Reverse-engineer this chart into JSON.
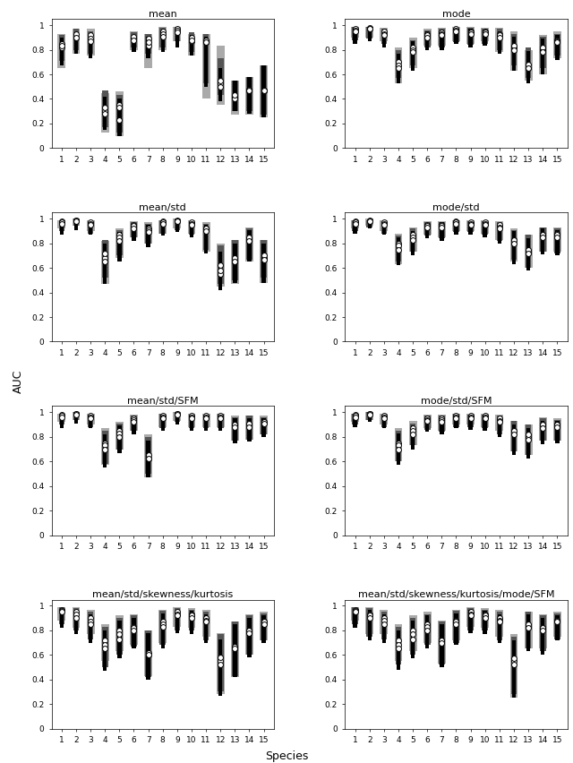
{
  "titles": [
    "mean",
    "mode",
    "mean/std",
    "mode/std",
    "mean/std/SFM",
    "mode/std/SFM",
    "mean/std/skewness/kurtosis",
    "mean/std/skewness/kurtosis/mode/SFM"
  ],
  "n_species": 15,
  "ylabel": "AUC",
  "xlabel": "Species",
  "colors": [
    "#aaaaaa",
    "#555555",
    "#000000"
  ],
  "bar_width": 0.55,
  "ylim": [
    0,
    1.05
  ],
  "yticks": [
    0,
    0.2,
    0.4,
    0.6,
    0.8,
    1
  ],
  "subplots_data": [
    {
      "title": "mean",
      "tops": [
        0.93,
        0.97,
        0.97,
        0.45,
        0.46,
        0.95,
        0.93,
        0.99,
        0.99,
        0.93,
        0.93,
        0.83,
        0.55,
        0.58,
        0.67
      ],
      "bots": [
        0.65,
        0.77,
        0.75,
        0.13,
        0.1,
        0.8,
        0.65,
        0.8,
        0.87,
        0.75,
        0.4,
        0.35,
        0.27,
        0.27,
        0.25
      ],
      "meds": [
        0.82,
        0.9,
        0.92,
        0.3,
        0.35,
        0.9,
        0.83,
        0.95,
        0.97,
        0.87,
        0.86,
        0.53,
        0.42,
        0.47,
        0.47
      ],
      "tops2": [
        0.92,
        0.97,
        0.95,
        0.47,
        0.43,
        0.94,
        0.93,
        0.98,
        0.99,
        0.94,
        0.93,
        0.73,
        0.55,
        0.58,
        0.67
      ],
      "bots2": [
        0.71,
        0.8,
        0.77,
        0.17,
        0.13,
        0.82,
        0.77,
        0.82,
        0.87,
        0.78,
        0.53,
        0.43,
        0.3,
        0.3,
        0.27
      ],
      "meds2": [
        0.85,
        0.93,
        0.89,
        0.33,
        0.33,
        0.91,
        0.89,
        0.93,
        0.96,
        0.9,
        0.88,
        0.55,
        0.4,
        0.48,
        0.47
      ],
      "tops3": [
        0.9,
        0.94,
        0.92,
        0.42,
        0.4,
        0.92,
        0.91,
        0.96,
        0.97,
        0.92,
        0.91,
        0.65,
        0.55,
        0.58,
        0.67
      ],
      "bots3": [
        0.67,
        0.77,
        0.73,
        0.15,
        0.1,
        0.78,
        0.73,
        0.78,
        0.82,
        0.75,
        0.5,
        0.38,
        0.3,
        0.28,
        0.25
      ],
      "meds3": [
        0.83,
        0.9,
        0.87,
        0.28,
        0.23,
        0.88,
        0.86,
        0.91,
        0.94,
        0.88,
        0.86,
        0.5,
        0.43,
        0.47,
        0.47
      ]
    },
    {
      "title": "mode",
      "tops": [
        0.99,
        0.99,
        0.98,
        0.82,
        0.9,
        0.97,
        0.98,
        0.99,
        0.99,
        0.98,
        0.98,
        0.95,
        0.8,
        0.92,
        0.95
      ],
      "bots": [
        0.9,
        0.9,
        0.87,
        0.53,
        0.65,
        0.83,
        0.83,
        0.87,
        0.85,
        0.87,
        0.78,
        0.63,
        0.55,
        0.6,
        0.73
      ],
      "meds": [
        0.97,
        0.98,
        0.95,
        0.7,
        0.82,
        0.93,
        0.94,
        0.97,
        0.95,
        0.95,
        0.93,
        0.82,
        0.65,
        0.8,
        0.88
      ],
      "tops2": [
        0.99,
        0.99,
        0.97,
        0.8,
        0.88,
        0.96,
        0.97,
        0.98,
        0.98,
        0.97,
        0.97,
        0.93,
        0.82,
        0.91,
        0.93
      ],
      "bots2": [
        0.88,
        0.89,
        0.85,
        0.57,
        0.67,
        0.82,
        0.82,
        0.86,
        0.84,
        0.85,
        0.8,
        0.67,
        0.57,
        0.65,
        0.75
      ],
      "meds2": [
        0.96,
        0.97,
        0.93,
        0.67,
        0.8,
        0.92,
        0.93,
        0.96,
        0.94,
        0.94,
        0.92,
        0.83,
        0.68,
        0.82,
        0.87
      ],
      "tops3": [
        0.98,
        0.98,
        0.96,
        0.77,
        0.87,
        0.95,
        0.96,
        0.97,
        0.97,
        0.96,
        0.95,
        0.91,
        0.79,
        0.89,
        0.92
      ],
      "bots3": [
        0.85,
        0.87,
        0.82,
        0.53,
        0.63,
        0.8,
        0.8,
        0.85,
        0.82,
        0.83,
        0.77,
        0.63,
        0.53,
        0.6,
        0.72
      ],
      "meds3": [
        0.95,
        0.97,
        0.92,
        0.65,
        0.78,
        0.9,
        0.92,
        0.95,
        0.93,
        0.93,
        0.9,
        0.8,
        0.65,
        0.78,
        0.86
      ]
    },
    {
      "title": "mean/std",
      "tops": [
        0.99,
        1.0,
        0.99,
        0.82,
        0.92,
        0.98,
        0.97,
        0.99,
        1.0,
        0.99,
        0.97,
        0.8,
        0.83,
        0.93,
        0.83
      ],
      "bots": [
        0.92,
        0.94,
        0.9,
        0.47,
        0.68,
        0.85,
        0.8,
        0.88,
        0.92,
        0.88,
        0.73,
        0.45,
        0.47,
        0.65,
        0.48
      ],
      "meds": [
        0.98,
        0.99,
        0.97,
        0.68,
        0.87,
        0.95,
        0.92,
        0.98,
        0.99,
        0.97,
        0.92,
        0.55,
        0.65,
        0.83,
        0.68
      ],
      "tops2": [
        0.99,
        1.0,
        0.98,
        0.83,
        0.91,
        0.97,
        0.96,
        0.99,
        1.0,
        0.98,
        0.96,
        0.78,
        0.83,
        0.92,
        0.83
      ],
      "bots2": [
        0.9,
        0.94,
        0.88,
        0.52,
        0.7,
        0.85,
        0.8,
        0.88,
        0.91,
        0.87,
        0.75,
        0.47,
        0.5,
        0.67,
        0.52
      ],
      "meds2": [
        0.97,
        0.99,
        0.96,
        0.72,
        0.85,
        0.94,
        0.91,
        0.97,
        0.98,
        0.96,
        0.92,
        0.62,
        0.68,
        0.85,
        0.7
      ],
      "tops3": [
        0.98,
        0.99,
        0.97,
        0.8,
        0.89,
        0.96,
        0.95,
        0.98,
        0.99,
        0.97,
        0.95,
        0.73,
        0.8,
        0.91,
        0.8
      ],
      "bots3": [
        0.87,
        0.91,
        0.87,
        0.47,
        0.65,
        0.82,
        0.77,
        0.86,
        0.89,
        0.85,
        0.72,
        0.42,
        0.48,
        0.65,
        0.48
      ],
      "meds3": [
        0.96,
        0.98,
        0.95,
        0.65,
        0.82,
        0.92,
        0.89,
        0.96,
        0.98,
        0.95,
        0.9,
        0.58,
        0.65,
        0.82,
        0.67
      ]
    },
    {
      "title": "mode/std",
      "tops": [
        0.99,
        1.0,
        0.99,
        0.88,
        0.93,
        0.98,
        0.98,
        0.99,
        0.99,
        0.99,
        0.98,
        0.92,
        0.87,
        0.93,
        0.93
      ],
      "bots": [
        0.92,
        0.94,
        0.9,
        0.63,
        0.73,
        0.87,
        0.85,
        0.9,
        0.9,
        0.88,
        0.83,
        0.65,
        0.6,
        0.73,
        0.73
      ],
      "meds": [
        0.98,
        0.99,
        0.97,
        0.8,
        0.87,
        0.95,
        0.95,
        0.98,
        0.97,
        0.97,
        0.95,
        0.83,
        0.73,
        0.87,
        0.88
      ],
      "tops2": [
        0.99,
        0.99,
        0.98,
        0.86,
        0.92,
        0.97,
        0.97,
        0.99,
        0.98,
        0.98,
        0.97,
        0.91,
        0.87,
        0.93,
        0.92
      ],
      "bots2": [
        0.9,
        0.93,
        0.88,
        0.65,
        0.73,
        0.86,
        0.84,
        0.89,
        0.89,
        0.87,
        0.82,
        0.67,
        0.6,
        0.73,
        0.72
      ],
      "meds2": [
        0.97,
        0.98,
        0.96,
        0.78,
        0.85,
        0.94,
        0.94,
        0.97,
        0.96,
        0.96,
        0.93,
        0.83,
        0.75,
        0.87,
        0.87
      ],
      "tops3": [
        0.98,
        0.99,
        0.97,
        0.85,
        0.9,
        0.96,
        0.97,
        0.98,
        0.97,
        0.97,
        0.96,
        0.9,
        0.84,
        0.92,
        0.91
      ],
      "bots3": [
        0.88,
        0.92,
        0.87,
        0.62,
        0.7,
        0.84,
        0.82,
        0.87,
        0.87,
        0.85,
        0.8,
        0.63,
        0.58,
        0.71,
        0.7
      ],
      "meds3": [
        0.96,
        0.98,
        0.95,
        0.75,
        0.83,
        0.93,
        0.93,
        0.96,
        0.95,
        0.95,
        0.92,
        0.8,
        0.72,
        0.85,
        0.85
      ]
    },
    {
      "title": "mean/std/SFM",
      "tops": [
        0.99,
        1.0,
        0.99,
        0.87,
        0.92,
        0.98,
        0.82,
        0.99,
        1.0,
        0.99,
        0.99,
        0.99,
        0.97,
        0.97,
        0.97
      ],
      "bots": [
        0.92,
        0.94,
        0.9,
        0.57,
        0.7,
        0.85,
        0.47,
        0.88,
        0.93,
        0.88,
        0.88,
        0.88,
        0.77,
        0.78,
        0.82
      ],
      "meds": [
        0.98,
        0.99,
        0.97,
        0.75,
        0.85,
        0.95,
        0.62,
        0.97,
        0.99,
        0.97,
        0.97,
        0.97,
        0.9,
        0.9,
        0.92
      ],
      "tops2": [
        0.99,
        1.0,
        0.98,
        0.85,
        0.91,
        0.97,
        0.8,
        0.99,
        1.0,
        0.98,
        0.98,
        0.99,
        0.96,
        0.97,
        0.96
      ],
      "bots2": [
        0.9,
        0.94,
        0.88,
        0.58,
        0.7,
        0.85,
        0.5,
        0.87,
        0.92,
        0.87,
        0.87,
        0.87,
        0.77,
        0.78,
        0.82
      ],
      "meds2": [
        0.97,
        0.99,
        0.96,
        0.73,
        0.83,
        0.94,
        0.65,
        0.96,
        0.99,
        0.96,
        0.96,
        0.96,
        0.9,
        0.91,
        0.92
      ],
      "tops3": [
        0.98,
        0.99,
        0.97,
        0.82,
        0.89,
        0.96,
        0.77,
        0.97,
        0.99,
        0.97,
        0.97,
        0.98,
        0.95,
        0.95,
        0.95
      ],
      "bots3": [
        0.87,
        0.91,
        0.87,
        0.55,
        0.67,
        0.82,
        0.47,
        0.85,
        0.9,
        0.85,
        0.85,
        0.85,
        0.75,
        0.76,
        0.8
      ],
      "meds3": [
        0.96,
        0.98,
        0.95,
        0.7,
        0.8,
        0.92,
        0.62,
        0.95,
        0.98,
        0.95,
        0.95,
        0.95,
        0.88,
        0.88,
        0.91
      ]
    },
    {
      "title": "mode/std/SFM",
      "tops": [
        0.99,
        1.0,
        0.99,
        0.87,
        0.93,
        0.98,
        0.98,
        0.99,
        0.99,
        0.99,
        0.98,
        0.93,
        0.9,
        0.96,
        0.95
      ],
      "bots": [
        0.92,
        0.94,
        0.9,
        0.6,
        0.73,
        0.87,
        0.85,
        0.9,
        0.9,
        0.88,
        0.85,
        0.68,
        0.65,
        0.77,
        0.77
      ],
      "meds": [
        0.98,
        0.99,
        0.97,
        0.75,
        0.87,
        0.95,
        0.95,
        0.97,
        0.97,
        0.97,
        0.95,
        0.85,
        0.8,
        0.9,
        0.9
      ],
      "tops2": [
        0.99,
        1.0,
        0.98,
        0.85,
        0.91,
        0.97,
        0.97,
        0.99,
        0.98,
        0.98,
        0.97,
        0.93,
        0.9,
        0.95,
        0.94
      ],
      "bots2": [
        0.9,
        0.94,
        0.88,
        0.6,
        0.73,
        0.86,
        0.84,
        0.88,
        0.88,
        0.87,
        0.82,
        0.68,
        0.65,
        0.77,
        0.77
      ],
      "meds2": [
        0.97,
        0.99,
        0.96,
        0.73,
        0.85,
        0.94,
        0.94,
        0.96,
        0.96,
        0.96,
        0.93,
        0.85,
        0.82,
        0.9,
        0.9
      ],
      "tops3": [
        0.98,
        0.99,
        0.97,
        0.83,
        0.89,
        0.96,
        0.96,
        0.97,
        0.97,
        0.97,
        0.96,
        0.9,
        0.87,
        0.93,
        0.93
      ],
      "bots3": [
        0.88,
        0.92,
        0.87,
        0.57,
        0.7,
        0.84,
        0.82,
        0.87,
        0.86,
        0.85,
        0.8,
        0.65,
        0.62,
        0.74,
        0.75
      ],
      "meds3": [
        0.96,
        0.98,
        0.95,
        0.7,
        0.82,
        0.93,
        0.92,
        0.95,
        0.95,
        0.95,
        0.92,
        0.82,
        0.78,
        0.87,
        0.88
      ]
    },
    {
      "title": "mean/std/skewness/kurtosis",
      "tops": [
        0.99,
        0.99,
        0.97,
        0.85,
        0.92,
        0.93,
        0.8,
        0.97,
        0.99,
        0.98,
        0.97,
        0.78,
        0.87,
        0.93,
        0.95
      ],
      "bots": [
        0.88,
        0.82,
        0.77,
        0.55,
        0.63,
        0.68,
        0.43,
        0.7,
        0.83,
        0.82,
        0.75,
        0.28,
        0.42,
        0.6,
        0.72
      ],
      "meds": [
        0.97,
        0.95,
        0.9,
        0.72,
        0.8,
        0.83,
        0.6,
        0.87,
        0.95,
        0.93,
        0.9,
        0.55,
        0.65,
        0.8,
        0.87
      ],
      "tops2": [
        0.99,
        0.98,
        0.95,
        0.83,
        0.9,
        0.92,
        0.8,
        0.96,
        0.98,
        0.97,
        0.95,
        0.77,
        0.87,
        0.92,
        0.94
      ],
      "bots2": [
        0.85,
        0.8,
        0.73,
        0.5,
        0.6,
        0.67,
        0.42,
        0.68,
        0.8,
        0.8,
        0.72,
        0.3,
        0.43,
        0.6,
        0.72
      ],
      "meds2": [
        0.96,
        0.93,
        0.87,
        0.68,
        0.77,
        0.82,
        0.62,
        0.85,
        0.93,
        0.92,
        0.88,
        0.58,
        0.67,
        0.8,
        0.87
      ],
      "tops3": [
        0.97,
        0.97,
        0.93,
        0.8,
        0.88,
        0.9,
        0.78,
        0.94,
        0.97,
        0.96,
        0.93,
        0.73,
        0.85,
        0.9,
        0.92
      ],
      "bots3": [
        0.82,
        0.77,
        0.7,
        0.47,
        0.57,
        0.65,
        0.4,
        0.65,
        0.78,
        0.77,
        0.7,
        0.27,
        0.42,
        0.58,
        0.7
      ],
      "meds3": [
        0.95,
        0.9,
        0.85,
        0.65,
        0.73,
        0.8,
        0.6,
        0.83,
        0.92,
        0.9,
        0.87,
        0.52,
        0.65,
        0.78,
        0.85
      ]
    },
    {
      "title": "mean/std/skewness/kurtosis/mode/SFM",
      "tops": [
        0.99,
        0.99,
        0.97,
        0.85,
        0.92,
        0.95,
        0.88,
        0.97,
        0.99,
        0.98,
        0.97,
        0.77,
        0.95,
        0.93,
        0.95
      ],
      "bots": [
        0.88,
        0.77,
        0.77,
        0.55,
        0.63,
        0.7,
        0.53,
        0.72,
        0.83,
        0.82,
        0.75,
        0.25,
        0.65,
        0.65,
        0.75
      ],
      "meds": [
        0.97,
        0.93,
        0.9,
        0.72,
        0.8,
        0.85,
        0.72,
        0.88,
        0.95,
        0.93,
        0.9,
        0.55,
        0.83,
        0.82,
        0.88
      ],
      "tops2": [
        0.99,
        0.98,
        0.95,
        0.83,
        0.9,
        0.93,
        0.87,
        0.96,
        0.98,
        0.97,
        0.95,
        0.75,
        0.95,
        0.92,
        0.94
      ],
      "bots2": [
        0.85,
        0.75,
        0.73,
        0.52,
        0.6,
        0.68,
        0.52,
        0.7,
        0.8,
        0.8,
        0.72,
        0.28,
        0.65,
        0.63,
        0.73
      ],
      "meds2": [
        0.96,
        0.92,
        0.88,
        0.68,
        0.77,
        0.83,
        0.72,
        0.87,
        0.93,
        0.92,
        0.88,
        0.57,
        0.85,
        0.82,
        0.88
      ],
      "tops3": [
        0.97,
        0.97,
        0.93,
        0.8,
        0.88,
        0.92,
        0.85,
        0.94,
        0.97,
        0.96,
        0.93,
        0.72,
        0.93,
        0.9,
        0.92
      ],
      "bots3": [
        0.82,
        0.72,
        0.7,
        0.48,
        0.57,
        0.65,
        0.5,
        0.68,
        0.78,
        0.77,
        0.7,
        0.25,
        0.63,
        0.6,
        0.72
      ],
      "meds3": [
        0.95,
        0.9,
        0.85,
        0.65,
        0.73,
        0.8,
        0.7,
        0.85,
        0.92,
        0.9,
        0.87,
        0.52,
        0.82,
        0.8,
        0.87
      ]
    }
  ]
}
